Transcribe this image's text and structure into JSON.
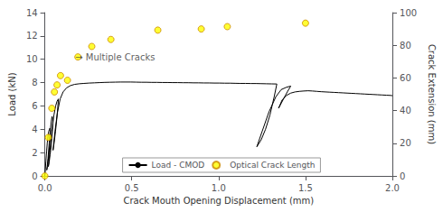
{
  "chart_data": {
    "type": "line",
    "title": "",
    "xlabel": "Crack Mouth Opening Displacement (mm)",
    "ylabel": "Load (kN)",
    "y2label": "Crack Extension (mm)",
    "xlim": [
      0,
      2.0
    ],
    "ylim": [
      0,
      14
    ],
    "y2lim": [
      0,
      100
    ],
    "xticks": [
      {
        "value": 0,
        "label": "0.0"
      },
      0.5,
      {
        "value": 1,
        "label": "1.0"
      },
      1.5,
      {
        "value": 2,
        "label": "2.0"
      }
    ],
    "yticks": [
      0,
      2,
      4,
      6,
      8,
      10,
      12,
      14
    ],
    "y2ticks": [
      0,
      20,
      40,
      60,
      80,
      100
    ],
    "grid": false,
    "legend": "bottom",
    "series": [
      {
        "name": "Load - CMOD",
        "type": "line",
        "color": "#000000",
        "marker": "none",
        "line_style": "solid",
        "x": [
          0.0,
          0.003,
          0.006,
          0.01,
          0.014,
          0.018,
          0.022,
          0.026,
          0.029,
          0.031,
          0.033,
          0.031,
          0.028,
          0.024,
          0.019,
          0.015,
          0.011,
          0.018,
          0.025,
          0.032,
          0.038,
          0.041,
          0.044,
          0.046,
          0.044,
          0.04,
          0.035,
          0.03,
          0.025,
          0.02,
          0.03,
          0.04,
          0.052,
          0.062,
          0.07,
          0.078,
          0.074,
          0.068,
          0.061,
          0.054,
          0.047,
          0.058,
          0.072,
          0.088,
          0.105,
          0.125,
          0.148,
          0.172,
          0.198,
          0.225,
          0.255,
          0.285,
          0.315,
          0.345,
          0.375,
          0.405,
          0.435,
          0.465,
          0.495,
          0.525,
          0.555,
          0.585,
          0.615,
          0.645,
          0.675,
          0.705,
          0.735,
          0.765,
          0.795,
          0.825,
          0.855,
          0.885,
          0.915,
          0.945,
          0.975,
          1.005,
          1.035,
          1.065,
          1.095,
          1.125,
          1.155,
          1.185,
          1.215,
          1.245,
          1.275,
          1.305,
          1.335,
          1.32,
          1.295,
          1.27,
          1.245,
          1.22,
          1.25,
          1.29,
          1.33,
          1.36,
          1.39,
          1.415,
          1.395,
          1.37,
          1.345,
          1.365,
          1.39,
          1.415,
          1.44,
          1.465,
          1.49,
          1.515,
          1.54,
          1.565,
          1.59,
          1.615,
          1.64,
          1.665,
          1.69,
          1.715,
          1.74,
          1.765,
          1.79,
          1.815,
          1.84,
          1.865,
          1.89,
          1.915,
          1.94,
          1.965,
          1.99,
          2.0
        ],
        "values": [
          0.0,
          0.6,
          1.3,
          2.1,
          2.85,
          3.4,
          3.8,
          4.0,
          4.1,
          4.05,
          3.9,
          3.5,
          2.8,
          2.0,
          1.3,
          0.8,
          0.5,
          1.5,
          2.8,
          4.0,
          4.8,
          5.1,
          5.0,
          4.7,
          4.0,
          3.2,
          2.4,
          1.8,
          1.2,
          0.8,
          2.2,
          3.8,
          5.2,
          6.0,
          6.4,
          6.6,
          5.8,
          4.8,
          3.8,
          2.9,
          2.2,
          3.8,
          5.4,
          6.6,
          7.2,
          7.55,
          7.75,
          7.85,
          7.9,
          7.93,
          7.96,
          7.98,
          8.0,
          8.02,
          8.03,
          8.04,
          8.05,
          8.05,
          8.05,
          8.04,
          8.03,
          8.03,
          8.02,
          8.02,
          8.01,
          8.01,
          8.0,
          8.0,
          7.99,
          7.99,
          7.98,
          7.98,
          7.97,
          7.97,
          7.96,
          7.96,
          7.95,
          7.95,
          7.94,
          7.93,
          7.93,
          7.92,
          7.92,
          7.91,
          7.9,
          7.89,
          7.88,
          6.8,
          5.2,
          4.0,
          3.1,
          2.5,
          3.8,
          5.5,
          6.8,
          7.4,
          7.6,
          7.7,
          7.2,
          6.5,
          5.8,
          6.5,
          6.9,
          7.1,
          7.2,
          7.25,
          7.28,
          7.3,
          7.28,
          7.25,
          7.22,
          7.2,
          7.18,
          7.16,
          7.14,
          7.12,
          7.1,
          7.08,
          7.06,
          7.04,
          7.02,
          7.0,
          6.98,
          6.96,
          6.94,
          6.92,
          6.9,
          6.88
        ]
      },
      {
        "name": "Optical Crack Length",
        "type": "scatter",
        "color": "#FFFF00",
        "marker": "circle",
        "x": [
          0.0,
          0.02,
          0.04,
          0.055,
          0.07,
          0.09,
          0.13,
          0.19,
          0.27,
          0.38,
          0.65,
          0.9,
          1.05,
          1.5
        ],
        "values": [
          0.0,
          3.3,
          5.8,
          7.2,
          7.8,
          8.6,
          8.2,
          10.2,
          11.1,
          11.7,
          12.5,
          12.6,
          12.8,
          13.1
        ]
      }
    ],
    "annotations": [
      {
        "text": "→ Multiple Cracks",
        "x": 0.175,
        "y": 10.2
      }
    ]
  }
}
